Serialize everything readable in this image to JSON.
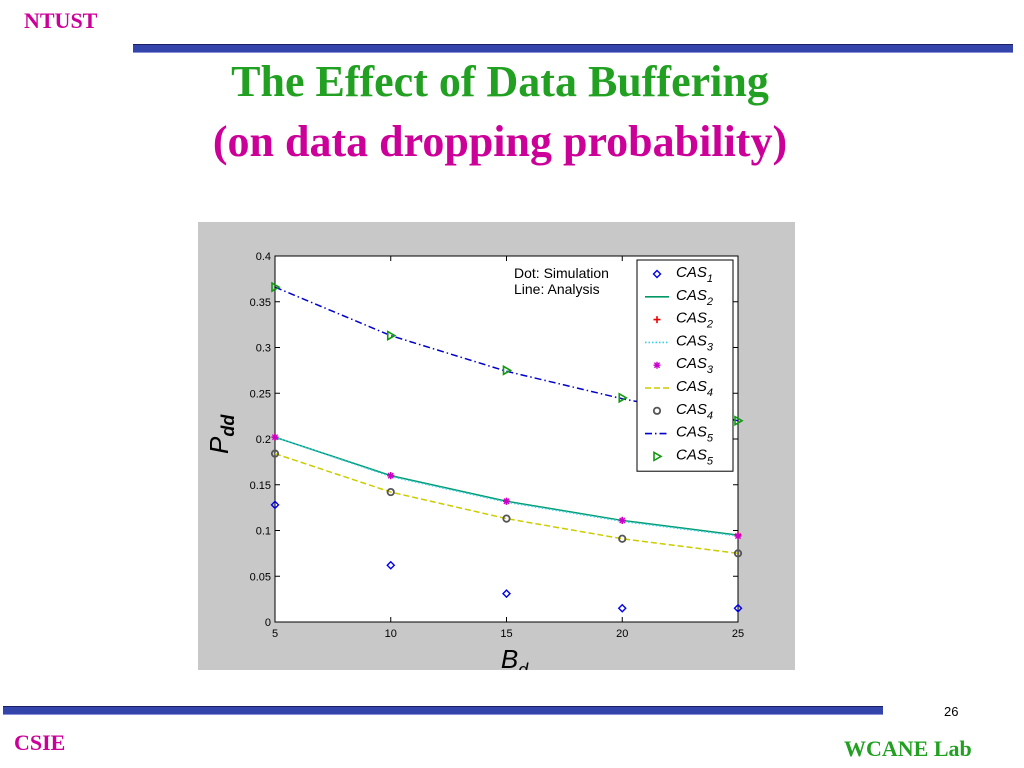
{
  "header": {
    "org": "NTUST"
  },
  "title": {
    "line1": "The Effect of Data Buffering",
    "line2": "(on data dropping probability)"
  },
  "footer": {
    "left": "CSIE",
    "right": "WCANE Lab",
    "page": "26"
  },
  "colors": {
    "green": "#22a022",
    "magenta": "#cc0099",
    "bar": "#3344aa",
    "blue": "#0000ee",
    "teal": "#009966",
    "red": "#ee0000",
    "cyan": "#33ccee",
    "pink": "#cc00cc",
    "olive": "#cccc00",
    "gray": "#555555",
    "darkblue": "#0000cc",
    "green_marker": "#119911"
  },
  "chart_data": {
    "type": "line",
    "xlabel": "B",
    "xlabel_sub": "d",
    "ylabel": "P",
    "ylabel_sub": "dd",
    "x": [
      5,
      10,
      15,
      20,
      25
    ],
    "xlim": [
      5,
      25
    ],
    "ylim": [
      0,
      0.4
    ],
    "xticks": [
      "5",
      "10",
      "15",
      "20",
      "25"
    ],
    "yticks": [
      "0",
      "0.05",
      "0.1",
      "0.15",
      "0.2",
      "0.25",
      "0.3",
      "0.35",
      "0.4"
    ],
    "annotation": [
      "Dot: Simulation",
      "Line: Analysis"
    ],
    "legend_position": "top-right",
    "grid": false,
    "series": [
      {
        "name": "CAS",
        "sub": "1",
        "kind": "marker",
        "marker": "diamond",
        "color": "#0000ee",
        "values": [
          0.128,
          0.062,
          0.031,
          0.015,
          0.015
        ]
      },
      {
        "name": "CAS",
        "sub": "2",
        "kind": "line",
        "dash": "solid",
        "color": "#009966",
        "values": [
          0.202,
          0.16,
          0.132,
          0.111,
          0.095
        ]
      },
      {
        "name": "CAS",
        "sub": "2",
        "kind": "marker",
        "marker": "plus",
        "color": "#ee0000",
        "values": [
          0.202,
          0.16,
          0.132,
          0.111,
          0.095
        ]
      },
      {
        "name": "CAS",
        "sub": "3",
        "kind": "line",
        "dash": "dotted",
        "color": "#33ccee",
        "values": [
          0.202,
          0.159,
          0.131,
          0.11,
          0.094
        ]
      },
      {
        "name": "CAS",
        "sub": "3",
        "kind": "marker",
        "marker": "star",
        "color": "#cc00cc",
        "values": [
          0.202,
          0.16,
          0.132,
          0.111,
          0.094
        ]
      },
      {
        "name": "CAS",
        "sub": "4",
        "kind": "line",
        "dash": "dashed",
        "color": "#cccc00",
        "values": [
          0.184,
          0.142,
          0.113,
          0.091,
          0.075
        ]
      },
      {
        "name": "CAS",
        "sub": "4",
        "kind": "marker",
        "marker": "circle",
        "color": "#555555",
        "values": [
          0.184,
          0.142,
          0.113,
          0.091,
          0.075
        ]
      },
      {
        "name": "CAS",
        "sub": "5",
        "kind": "line",
        "dash": "dashdot",
        "color": "#0000cc",
        "values": [
          0.366,
          0.313,
          0.274,
          0.244,
          0.22
        ]
      },
      {
        "name": "CAS",
        "sub": "5",
        "kind": "marker",
        "marker": "triangle-right",
        "color": "#119911",
        "values": [
          0.366,
          0.313,
          0.275,
          0.245,
          0.22
        ]
      }
    ]
  }
}
